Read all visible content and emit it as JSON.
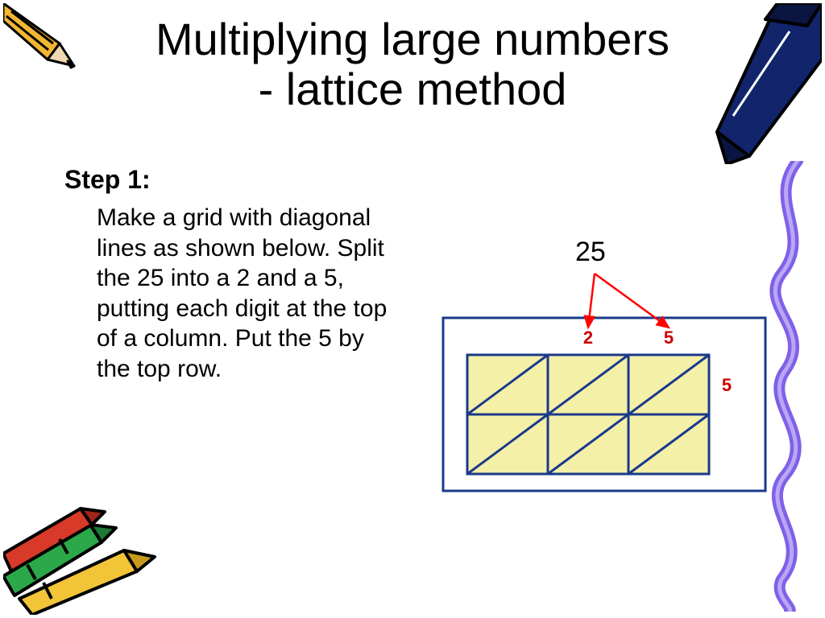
{
  "title_line1": "Multiplying large numbers",
  "title_line2": "- lattice method",
  "step_label": "Step 1:",
  "body_text": "Make a grid with diagonal lines as shown below. Split the 25 into a 2 and a 5, putting each digit at the top of a column. Put the 5 by the top row.",
  "diagram": {
    "split_number": "25",
    "top_digits": [
      "2",
      "5"
    ],
    "side_digits": [
      "5"
    ],
    "cols": 3,
    "rows": 2,
    "frame_color": "#1a3a8a",
    "cell_fill": "#f5f0a8",
    "cell_stroke": "#1a3a8a",
    "digit_color": "#cc0000",
    "arrow_color": "#ff0000",
    "background": "#ffffff",
    "digit_fontsize": 22,
    "split_fontsize": 34
  },
  "decor": {
    "pencil_body": "#f2b632",
    "pencil_tip": "#f0d9b0",
    "pencil_lead": "#222222",
    "crayon_green": "#2aa84a",
    "crayon_red": "#d83a2a",
    "crayon_yellow": "#f2c438",
    "outline": "#000000",
    "squiggle": "#8060e8"
  }
}
